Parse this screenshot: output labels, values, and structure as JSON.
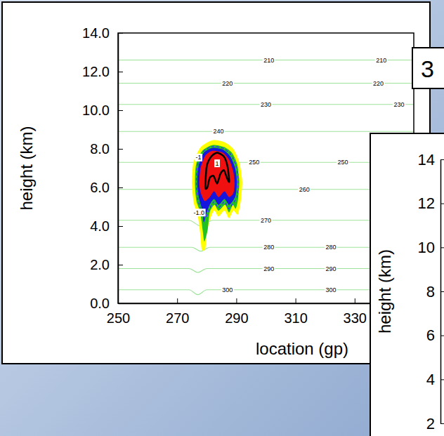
{
  "chart_data": [
    {
      "type": "contour",
      "xlabel": "location (gp)",
      "ylabel": "height (km)",
      "xlim": [
        250,
        350
      ],
      "ylim": [
        0,
        14
      ],
      "xticks": [
        250,
        270,
        290,
        310,
        330
      ],
      "yticks": [
        {
          "value": 0,
          "label": "0.0"
        },
        {
          "value": 2,
          "label": "2.0"
        },
        {
          "value": 4,
          "label": "4.0"
        },
        {
          "value": 6,
          "label": "6.0"
        },
        {
          "value": 8,
          "label": "8.0"
        },
        {
          "value": 10,
          "label": "10.0"
        },
        {
          "value": 12,
          "label": "12.0"
        },
        {
          "value": 14,
          "label": "14.0"
        }
      ],
      "color": "#9fe39a",
      "contours": [
        {
          "level": 300,
          "x": [
            250,
            274,
            277,
            280,
            350
          ],
          "y": [
            0.7,
            0.7,
            0.45,
            0.7,
            0.7
          ],
          "label_x": [
            287,
            322
          ]
        },
        {
          "level": 290,
          "x": [
            250,
            274,
            277,
            280,
            350
          ],
          "y": [
            1.8,
            1.8,
            1.6,
            1.8,
            1.8
          ],
          "label_x": [
            301,
            322
          ]
        },
        {
          "level": 280,
          "x": [
            250,
            275,
            278,
            281,
            350
          ],
          "y": [
            2.9,
            2.9,
            2.7,
            2.9,
            2.9
          ],
          "label_x": [
            301,
            322
          ]
        },
        {
          "level": 270,
          "x": [
            250,
            274,
            278,
            282,
            350
          ],
          "y": [
            4.3,
            4.3,
            4.0,
            4.3,
            4.3
          ],
          "label_x": [
            300
          ]
        },
        {
          "level": 260,
          "x": [
            250,
            350
          ],
          "y": [
            5.9,
            5.9
          ],
          "label_x": [
            313
          ]
        },
        {
          "level": 250,
          "x": [
            250,
            350
          ],
          "y": [
            7.3,
            7.3
          ],
          "label_x": [
            296,
            326
          ]
        },
        {
          "level": 240,
          "x": [
            250,
            350
          ],
          "y": [
            8.9,
            8.9
          ],
          "label_x": [
            284
          ]
        },
        {
          "level": 230,
          "x": [
            250,
            350
          ],
          "y": [
            10.3,
            10.3
          ],
          "label_x": [
            300,
            345
          ]
        },
        {
          "level": 220,
          "x": [
            250,
            350
          ],
          "y": [
            11.4,
            11.4
          ],
          "label_x": [
            287,
            338
          ]
        },
        {
          "level": 210,
          "x": [
            250,
            350
          ],
          "y": [
            12.6,
            12.6
          ],
          "label_x": [
            301,
            339
          ]
        }
      ],
      "regions": [
        {
          "color": "#ffff00",
          "x": [
            275,
            275.5,
            278,
            282,
            286,
            289,
            291,
            292,
            291.5,
            290.5,
            289,
            287.5,
            286,
            284,
            282.5,
            281,
            280,
            279.5,
            278.3,
            277.8,
            277,
            275.6
          ],
          "y": [
            6.2,
            7.3,
            8.1,
            8.45,
            8.35,
            8.0,
            7.3,
            6.3,
            5.3,
            4.6,
            4.8,
            4.4,
            4.8,
            4.5,
            4.8,
            4.3,
            3.6,
            2.8,
            2.8,
            3.6,
            4.5,
            5.2
          ]
        },
        {
          "color": "#22c022",
          "x": [
            276,
            276.4,
            278.5,
            282,
            285.8,
            288.5,
            290.3,
            291,
            290.6,
            289.8,
            288.8,
            287.5,
            286.2,
            284,
            282.6,
            281,
            280.3,
            279.2,
            278.6,
            277.8,
            276.5
          ],
          "y": [
            6.2,
            7.2,
            7.9,
            8.2,
            8.1,
            7.8,
            7.2,
            6.3,
            5.4,
            4.9,
            5.1,
            4.7,
            5.1,
            4.8,
            5.1,
            4.7,
            3.8,
            3.2,
            3.8,
            4.7,
            5.3
          ]
        },
        {
          "color": "#1515e0",
          "x": [
            276.8,
            277.2,
            279,
            282,
            285.6,
            288,
            289.6,
            290.2,
            289.8,
            288.8,
            287.5,
            286,
            284,
            282.5,
            281,
            279.8,
            279,
            278.5,
            277.3
          ],
          "y": [
            6.2,
            7.1,
            7.8,
            8.05,
            7.95,
            7.6,
            7.0,
            6.3,
            5.6,
            5.3,
            5.1,
            5.4,
            5.1,
            5.4,
            5.1,
            4.6,
            4.2,
            4.8,
            5.5
          ]
        },
        {
          "color": "#f01010",
          "x": [
            277.5,
            277.9,
            279.5,
            282,
            285.5,
            287.7,
            289,
            289.4,
            289,
            287.5,
            286,
            284,
            282.5,
            281,
            279.3,
            278
          ],
          "y": [
            6.2,
            7.0,
            7.65,
            7.9,
            7.8,
            7.4,
            6.8,
            6.2,
            5.7,
            5.5,
            5.8,
            5.5,
            5.8,
            5.5,
            5.3,
            5.7
          ]
        }
      ],
      "cloud_contours": [
        {
          "level": 1,
          "color": "#000000",
          "line_style": "solid",
          "x": [
            279.5,
            280,
            281.5,
            283.5,
            285.8,
            287,
            287.6,
            286.8,
            285.8,
            284.6,
            283.5,
            282.3,
            281,
            280.2
          ],
          "y": [
            6.0,
            7.1,
            7.6,
            7.8,
            7.6,
            7.1,
            6.3,
            6.5,
            6.9,
            6.7,
            6.2,
            6.6,
            6.5,
            6.0
          ],
          "labels": [
            {
              "label": "1",
              "x": 283.5,
              "y": 7.25
            }
          ]
        },
        {
          "level": -1,
          "color": "#3a3aff",
          "line_style": "dashed",
          "x": [
            276.5,
            276.9,
            278.8,
            282,
            285.7,
            288.2,
            290,
            290.6,
            290.2,
            289,
            287.5,
            286,
            284,
            282.5,
            281,
            279.5,
            278.2,
            277
          ],
          "y": [
            6.2,
            7.15,
            7.85,
            8.12,
            8.02,
            7.7,
            7.1,
            6.3,
            5.5,
            5.2,
            4.9,
            5.25,
            4.95,
            5.25,
            4.9,
            4.4,
            4.8,
            5.4
          ],
          "labels": [
            {
              "label": "-1",
              "x": 277.2,
              "y": 7.55
            },
            {
              "label": "-1.0",
              "x": 277.4,
              "y": 4.7
            }
          ]
        }
      ]
    },
    {
      "type": "contour",
      "ylabel": "height (km)",
      "ylim": [
        2,
        14
      ],
      "yticks": [
        2,
        4,
        6,
        8,
        10,
        12,
        14
      ],
      "annotations": [
        "3"
      ]
    }
  ]
}
